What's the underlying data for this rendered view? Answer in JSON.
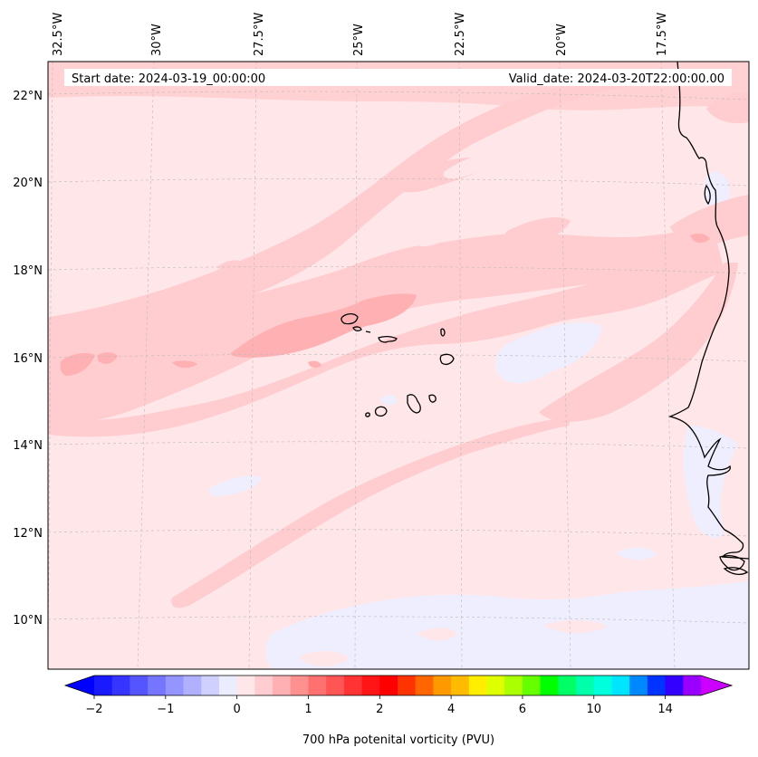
{
  "header": {
    "start_date": "Start date: 2024-03-19_00:00:00",
    "valid_date": "Valid_date: 2024-03-20T22:00:00.00"
  },
  "map": {
    "lon_labels": [
      "32.5°W",
      "30°W",
      "27.5°W",
      "25°W",
      "22.5°W",
      "20°W",
      "17.5°W"
    ],
    "lat_labels": [
      "22°N",
      "20°N",
      "18°N",
      "16°N",
      "14°N",
      "12°N",
      "10°N"
    ],
    "field": "700 hPa potenital vorticity",
    "background_color": "#ffe6e8"
  },
  "colorbar": {
    "label": "700 hPa potenital vorticity (PVU)",
    "tick_labels": [
      "−2",
      "−1",
      "0",
      "1",
      "2",
      "4",
      "6",
      "10",
      "14"
    ],
    "colors": [
      "#1a1aff",
      "#3535ff",
      "#5555ff",
      "#7575ff",
      "#9595ff",
      "#b0b0ff",
      "#d0d0ff",
      "#ececff",
      "#ffe6e8",
      "#ffcccf",
      "#ffb0b3",
      "#ff9090",
      "#ff7070",
      "#ff5555",
      "#ff3333",
      "#ff1515",
      "#ff0000",
      "#ff3300",
      "#ff6600",
      "#ff9900",
      "#ffbb00",
      "#ffee00",
      "#ddff00",
      "#aaff00",
      "#66ff00",
      "#00ff00",
      "#00ff66",
      "#00ffaa",
      "#00ffdd",
      "#00e5ff",
      "#0088ff",
      "#0033ff",
      "#3300ff",
      "#9900ff"
    ],
    "under_color": "#0000ff",
    "over_color": "#cc00ff"
  }
}
